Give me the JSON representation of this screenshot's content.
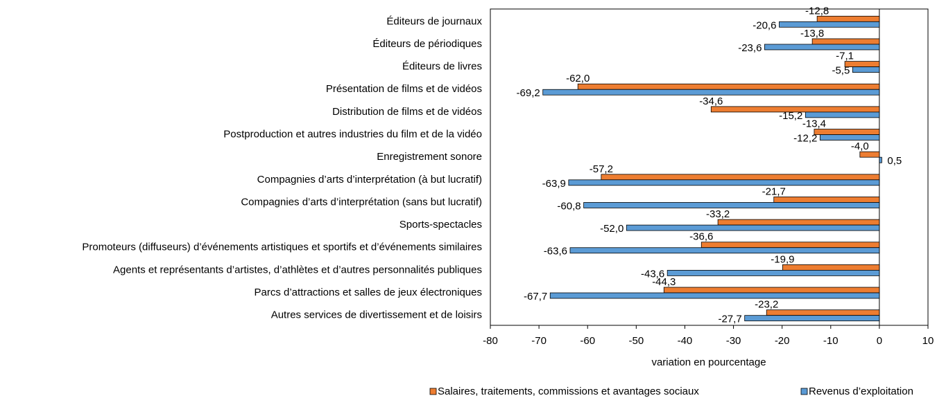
{
  "chart_data": {
    "type": "bar",
    "orientation": "horizontal",
    "x_label": "variation en pourcentage",
    "categories": [
      "Éditeurs de journaux",
      "Éditeurs de périodiques",
      "Éditeurs de livres",
      "Présentation de films et de vidéos",
      "Distribution de films et de vidéos",
      "Postproduction et autres industries du film et de la vidéo",
      "Enregistrement sonore",
      "Compagnies d’arts d’interprétation (à but lucratif)",
      "Compagnies d’arts d’interprétation (sans but lucratif)",
      "Sports-spectacles",
      "Promoteurs (diffuseurs) d’événements artistiques et sportifs et d’événements similaires",
      "Agents et représentants d’artistes, d’athlètes et d’autres personnalités publiques",
      "Parcs d’attractions et salles de jeux électroniques",
      "Autres services de divertissement et de loisirs"
    ],
    "series": [
      {
        "name": "Salaires, traitements, commissions et avantages sociaux",
        "color": "#ed7d31",
        "values": [
          -12.8,
          -13.8,
          -7.1,
          -62.0,
          -34.6,
          -13.4,
          -4.0,
          -57.2,
          -21.7,
          -33.2,
          -36.6,
          -19.9,
          -44.3,
          -23.2
        ],
        "value_labels": [
          "-12,8",
          "-13,8",
          "-7,1",
          "-62,0",
          "-34,6",
          "-13,4",
          "-4,0",
          "-57,2",
          "-21,7",
          "-33,2",
          "-36,6",
          "-19,9",
          "-44,3",
          "-23,2"
        ]
      },
      {
        "name": "Revenus d’exploitation",
        "color": "#5b9bd5",
        "values": [
          -20.6,
          -23.6,
          -5.5,
          -69.2,
          -15.2,
          -12.2,
          0.5,
          -63.9,
          -60.8,
          -52.0,
          -63.6,
          -43.6,
          -67.7,
          -27.7
        ],
        "value_labels": [
          "-20,6",
          "-23,6",
          "-5,5",
          "-69,2",
          "-15,2",
          "-12,2",
          "0,5",
          "-63,9",
          "-60,8",
          "-52,0",
          "-63,6",
          "-43,6",
          "-67,7",
          "-27,7"
        ]
      }
    ],
    "xlim": [
      -80,
      10
    ],
    "xticks": [
      -80,
      -70,
      -60,
      -50,
      -40,
      -30,
      -20,
      -10,
      0,
      10
    ],
    "legend": "bottom"
  }
}
